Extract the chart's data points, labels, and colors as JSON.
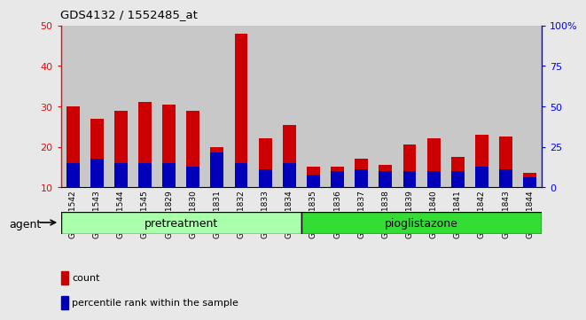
{
  "title": "GDS4132 / 1552485_at",
  "categories": [
    "GSM201542",
    "GSM201543",
    "GSM201544",
    "GSM201545",
    "GSM201829",
    "GSM201830",
    "GSM201831",
    "GSM201832",
    "GSM201833",
    "GSM201834",
    "GSM201835",
    "GSM201836",
    "GSM201837",
    "GSM201838",
    "GSM201839",
    "GSM201840",
    "GSM201841",
    "GSM201842",
    "GSM201843",
    "GSM201844"
  ],
  "count_values": [
    30,
    27,
    29,
    31,
    30.5,
    29,
    20,
    48,
    22,
    25.5,
    15,
    15,
    17,
    15.5,
    20.5,
    22,
    17.5,
    23,
    22.5,
    13.5
  ],
  "percentile_values": [
    16,
    17,
    16,
    16,
    16,
    15,
    18.5,
    16,
    14.5,
    16,
    13,
    14,
    14.5,
    14,
    14,
    14,
    14,
    15,
    14.5,
    12.5
  ],
  "bar_bottom": 10,
  "ylim_left": [
    10,
    50
  ],
  "ylim_right": [
    0,
    100
  ],
  "yticks_left": [
    10,
    20,
    30,
    40,
    50
  ],
  "yticks_right": [
    0,
    25,
    50,
    75,
    100
  ],
  "ytick_labels_right": [
    "0",
    "25",
    "50",
    "75",
    "100%"
  ],
  "pretreatment_label": "pretreatment",
  "pioglitazone_label": "pioglistazone",
  "count_color": "#CC0000",
  "percentile_color": "#0000BB",
  "col_bg_color": "#C8C8C8",
  "plot_bg": "#FFFFFF",
  "fig_bg": "#E8E8E8",
  "agent_label": "agent",
  "legend_count": "count",
  "legend_pct": "percentile rank within the sample",
  "bar_width": 0.55,
  "pretreatment_color": "#AAFFAA",
  "pioglitazone_color": "#33DD33",
  "n_pretreatment": 10,
  "n_pioglitazone": 10
}
